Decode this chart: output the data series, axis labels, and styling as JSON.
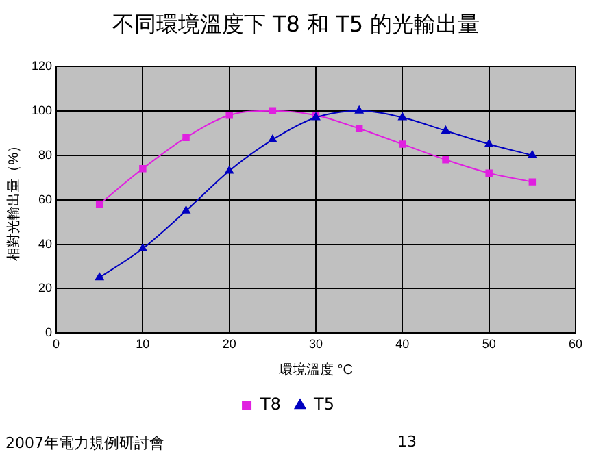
{
  "chart_data": {
    "type": "line",
    "title": "不同環境溫度下 T8 和 T5 的光輸出量",
    "xlabel": "環境溫度 °C",
    "ylabel": "相對光輸出量（%）",
    "x": [
      5,
      10,
      15,
      20,
      25,
      30,
      35,
      40,
      45,
      50,
      55
    ],
    "series": [
      {
        "name": "T8",
        "color": "#e020e0",
        "marker": "square",
        "values": [
          58,
          74,
          88,
          98,
          100,
          98,
          92,
          85,
          78,
          72,
          68
        ]
      },
      {
        "name": "T5",
        "color": "#0000c0",
        "marker": "triangle",
        "values": [
          25,
          38,
          55,
          73,
          87,
          97,
          100,
          97,
          91,
          85,
          80
        ]
      }
    ],
    "xlim": [
      0,
      60
    ],
    "xticks": [
      0,
      10,
      20,
      30,
      40,
      50,
      60
    ],
    "ylim": [
      0,
      120
    ],
    "yticks": [
      0,
      20,
      40,
      60,
      80,
      100,
      120
    ],
    "grid": true,
    "legend": "bottom",
    "annotations": [
      "2007年電力規例研討會",
      "13"
    ]
  }
}
